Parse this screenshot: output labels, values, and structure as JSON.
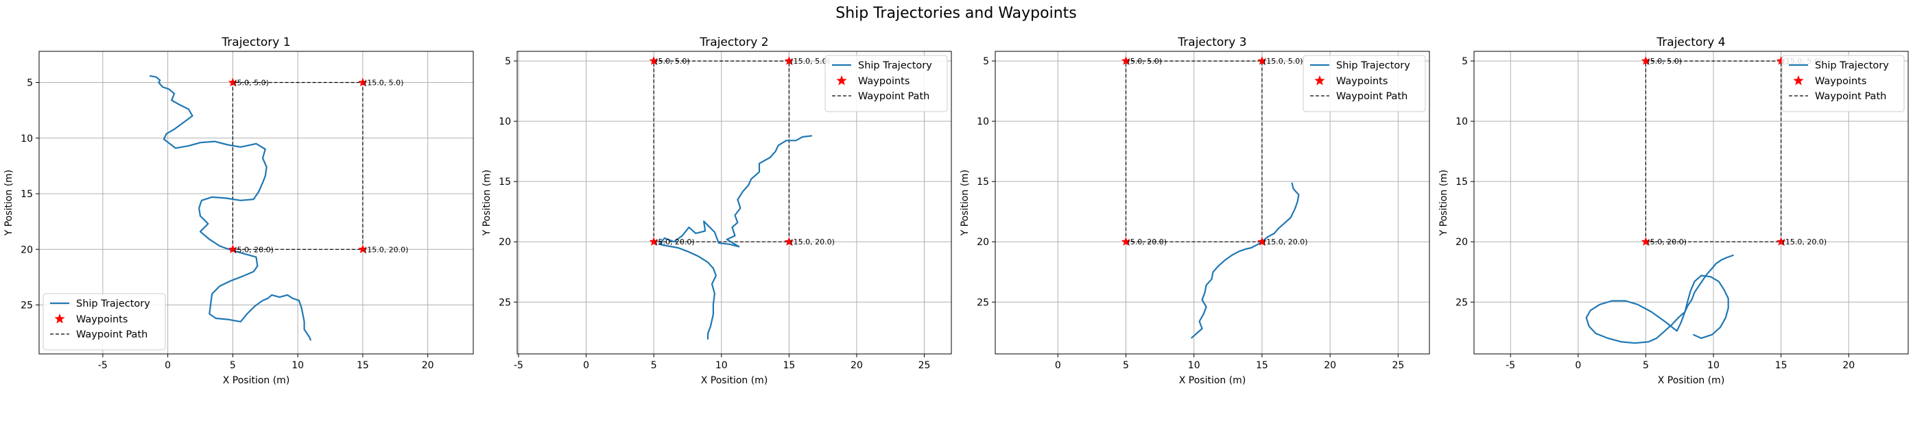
{
  "figure": {
    "title": "Ship Trajectories and Waypoints"
  },
  "colors": {
    "trajectory": "#1f77b4",
    "waypoint": "#ff0000",
    "path": "#000000",
    "grid": "#b0b0b0"
  },
  "chart_data": [
    {
      "type": "line",
      "title": "Trajectory 1",
      "xlabel": "X Position (m)",
      "ylabel": "Y Position (m)",
      "xlim": [
        -9.9,
        23.5
      ],
      "ylim": [
        29.4,
        2.2
      ],
      "y_inverted": true,
      "xticks": [
        -5,
        0,
        5,
        10,
        15,
        20
      ],
      "yticks": [
        5,
        10,
        15,
        20,
        25
      ],
      "grid": true,
      "legend": {
        "loc": "lower-left",
        "entries": [
          "Ship Trajectory",
          "Waypoints",
          "Waypoint Path"
        ]
      },
      "waypoints": [
        {
          "x": 5,
          "y": 5,
          "label": "(5.0, 5.0)"
        },
        {
          "x": 15,
          "y": 5,
          "label": "(15.0, 5.0)"
        },
        {
          "x": 15,
          "y": 20,
          "label": "(15.0, 20.0)"
        },
        {
          "x": 5,
          "y": 20,
          "label": "(5.0, 20.0)"
        }
      ],
      "waypoint_path": [
        [
          5,
          20
        ],
        [
          5,
          5
        ],
        [
          15,
          5
        ],
        [
          15,
          20
        ],
        [
          5,
          20
        ]
      ],
      "series": [
        {
          "name": "Ship Trajectory",
          "points": [
            [
              -1.4,
              4.4
            ],
            [
              -0.9,
              4.5
            ],
            [
              -0.6,
              4.8
            ],
            [
              -0.7,
              5.0
            ],
            [
              -0.4,
              5.4
            ],
            [
              0.1,
              5.6
            ],
            [
              0.5,
              6.0
            ],
            [
              0.3,
              6.6
            ],
            [
              0.9,
              7.0
            ],
            [
              1.6,
              7.4
            ],
            [
              1.9,
              8.0
            ],
            [
              1.2,
              8.6
            ],
            [
              0.5,
              9.2
            ],
            [
              -0.1,
              9.6
            ],
            [
              -0.3,
              10.1
            ],
            [
              0.6,
              10.9
            ],
            [
              1.6,
              10.7
            ],
            [
              2.5,
              10.4
            ],
            [
              3.6,
              10.3
            ],
            [
              4.6,
              10.6
            ],
            [
              5.6,
              10.8
            ],
            [
              6.8,
              10.5
            ],
            [
              7.5,
              11.0
            ],
            [
              7.3,
              11.8
            ],
            [
              7.6,
              12.6
            ],
            [
              7.5,
              13.4
            ],
            [
              7.3,
              14.0
            ],
            [
              7.0,
              14.8
            ],
            [
              6.6,
              15.5
            ],
            [
              5.6,
              15.6
            ],
            [
              4.5,
              15.4
            ],
            [
              3.4,
              15.3
            ],
            [
              2.6,
              15.6
            ],
            [
              2.4,
              16.3
            ],
            [
              2.5,
              17.0
            ],
            [
              3.1,
              17.7
            ],
            [
              2.5,
              18.4
            ],
            [
              3.2,
              19.1
            ],
            [
              4.0,
              19.7
            ],
            [
              4.7,
              20.0
            ],
            [
              5.0,
              20.1
            ],
            [
              5.9,
              20.4
            ],
            [
              6.8,
              20.7
            ],
            [
              6.9,
              21.5
            ],
            [
              6.6,
              22.0
            ],
            [
              5.8,
              22.4
            ],
            [
              4.9,
              22.8
            ],
            [
              4.0,
              23.3
            ],
            [
              3.4,
              24.0
            ],
            [
              3.3,
              24.9
            ],
            [
              3.2,
              25.8
            ],
            [
              3.7,
              26.2
            ],
            [
              4.6,
              26.3
            ],
            [
              5.6,
              26.5
            ],
            [
              6.1,
              25.8
            ],
            [
              6.7,
              25.1
            ],
            [
              7.3,
              24.6
            ],
            [
              7.7,
              24.4
            ],
            [
              8.0,
              24.1
            ],
            [
              8.6,
              24.3
            ],
            [
              9.2,
              24.1
            ],
            [
              9.6,
              24.4
            ],
            [
              10.1,
              24.6
            ],
            [
              10.3,
              25.3
            ],
            [
              10.5,
              26.5
            ],
            [
              10.5,
              27.2
            ],
            [
              10.9,
              27.9
            ],
            [
              11.0,
              28.2
            ]
          ]
        }
      ]
    },
    {
      "type": "line",
      "title": "Trajectory 2",
      "xlabel": "X Position (m)",
      "ylabel": "Y Position (m)",
      "xlim": [
        -5.1,
        27.0
      ],
      "ylim": [
        29.3,
        4.2
      ],
      "y_inverted": true,
      "xticks": [
        -5,
        0,
        5,
        10,
        15,
        20,
        25
      ],
      "yticks": [
        5,
        10,
        15,
        20,
        25
      ],
      "grid": true,
      "legend": {
        "loc": "upper-right",
        "entries": [
          "Ship Trajectory",
          "Waypoints",
          "Waypoint Path"
        ]
      },
      "waypoints": [
        {
          "x": 5,
          "y": 5,
          "label": "(5.0, 5.0)"
        },
        {
          "x": 15,
          "y": 5,
          "label": "(15.0, 5.0)"
        },
        {
          "x": 15,
          "y": 20,
          "label": "(15.0, 20.0)"
        },
        {
          "x": 5,
          "y": 20,
          "label": "(5.0, 20.0)"
        }
      ],
      "waypoint_path": [
        [
          5,
          20
        ],
        [
          5,
          5
        ],
        [
          15,
          5
        ],
        [
          15,
          20
        ],
        [
          5,
          20
        ]
      ],
      "series": [
        {
          "name": "Ship Trajectory",
          "points": [
            [
              16.7,
              11.2
            ],
            [
              16.0,
              11.3
            ],
            [
              15.5,
              11.6
            ],
            [
              14.8,
              11.6
            ],
            [
              14.2,
              12.0
            ],
            [
              14.0,
              12.5
            ],
            [
              13.6,
              13.0
            ],
            [
              12.8,
              13.5
            ],
            [
              12.8,
              14.2
            ],
            [
              12.2,
              14.8
            ],
            [
              12.0,
              15.3
            ],
            [
              11.6,
              15.8
            ],
            [
              11.2,
              16.5
            ],
            [
              11.4,
              17.2
            ],
            [
              11.0,
              17.8
            ],
            [
              11.2,
              18.4
            ],
            [
              10.8,
              18.8
            ],
            [
              11.0,
              19.5
            ],
            [
              10.4,
              19.8
            ],
            [
              11.3,
              20.4
            ],
            [
              10.6,
              20.2
            ],
            [
              9.8,
              20.1
            ],
            [
              9.5,
              19.2
            ],
            [
              8.7,
              18.3
            ],
            [
              8.8,
              19.1
            ],
            [
              8.1,
              19.3
            ],
            [
              7.6,
              18.8
            ],
            [
              7.1,
              19.5
            ],
            [
              6.5,
              20.0
            ],
            [
              5.8,
              19.7
            ],
            [
              5.4,
              20.2
            ],
            [
              5.8,
              20.3
            ],
            [
              6.8,
              20.5
            ],
            [
              7.5,
              20.8
            ],
            [
              8.3,
              21.2
            ],
            [
              9.0,
              21.7
            ],
            [
              9.4,
              22.2
            ],
            [
              9.6,
              22.8
            ],
            [
              9.3,
              23.5
            ],
            [
              9.5,
              24.3
            ],
            [
              9.4,
              25.2
            ],
            [
              9.4,
              26.0
            ],
            [
              9.2,
              27.0
            ],
            [
              9.0,
              27.6
            ],
            [
              9.0,
              28.1
            ]
          ]
        }
      ]
    },
    {
      "type": "line",
      "title": "Trajectory 3",
      "xlabel": "X Position (m)",
      "ylabel": "Y Position (m)",
      "xlim": [
        -4.6,
        27.3
      ],
      "ylim": [
        29.3,
        4.2
      ],
      "y_inverted": true,
      "xticks": [
        0,
        5,
        10,
        15,
        20,
        25
      ],
      "yticks": [
        5,
        10,
        15,
        20,
        25
      ],
      "grid": true,
      "legend": {
        "loc": "upper-right",
        "entries": [
          "Ship Trajectory",
          "Waypoints",
          "Waypoint Path"
        ]
      },
      "waypoints": [
        {
          "x": 5,
          "y": 5,
          "label": "(5.0, 5.0)"
        },
        {
          "x": 15,
          "y": 5,
          "label": "(15.0, 5.0)"
        },
        {
          "x": 15,
          "y": 20,
          "label": "(15.0, 20.0)"
        },
        {
          "x": 5,
          "y": 20,
          "label": "(5.0, 20.0)"
        }
      ],
      "waypoint_path": [
        [
          5,
          20
        ],
        [
          5,
          5
        ],
        [
          15,
          5
        ],
        [
          15,
          20
        ],
        [
          5,
          20
        ]
      ],
      "series": [
        {
          "name": "Ship Trajectory",
          "points": [
            [
              17.2,
              15.1
            ],
            [
              17.3,
              15.6
            ],
            [
              17.7,
              16.1
            ],
            [
              17.6,
              16.7
            ],
            [
              17.4,
              17.3
            ],
            [
              17.1,
              18.0
            ],
            [
              16.7,
              18.4
            ],
            [
              16.2,
              18.9
            ],
            [
              15.9,
              19.3
            ],
            [
              15.4,
              19.6
            ],
            [
              15.0,
              20.0
            ],
            [
              14.7,
              20.2
            ],
            [
              14.2,
              20.5
            ],
            [
              13.8,
              20.6
            ],
            [
              13.3,
              20.8
            ],
            [
              12.8,
              21.1
            ],
            [
              12.3,
              21.5
            ],
            [
              11.8,
              22.0
            ],
            [
              11.4,
              22.5
            ],
            [
              11.3,
              23.1
            ],
            [
              10.9,
              23.6
            ],
            [
              10.8,
              24.2
            ],
            [
              10.6,
              24.8
            ],
            [
              10.9,
              25.4
            ],
            [
              10.7,
              26.0
            ],
            [
              10.4,
              26.6
            ],
            [
              10.6,
              27.2
            ],
            [
              10.1,
              27.7
            ],
            [
              9.8,
              28.0
            ]
          ]
        }
      ]
    },
    {
      "type": "line",
      "title": "Trajectory 4",
      "xlabel": "X Position (m)",
      "ylabel": "Y Position (m)",
      "xlim": [
        -7.7,
        24.4
      ],
      "ylim": [
        29.3,
        4.2
      ],
      "y_inverted": true,
      "xticks": [
        -5,
        0,
        5,
        10,
        15,
        20
      ],
      "yticks": [
        5,
        10,
        15,
        20,
        25
      ],
      "grid": true,
      "legend": {
        "loc": "upper-right",
        "entries": [
          "Ship Trajectory",
          "Waypoints",
          "Waypoint Path"
        ]
      },
      "waypoints": [
        {
          "x": 5,
          "y": 5,
          "label": "(5.0, 5.0)"
        },
        {
          "x": 15,
          "y": 5,
          "label": "(15.0, 5.0)"
        },
        {
          "x": 15,
          "y": 20,
          "label": "(15.0, 20.0)"
        },
        {
          "x": 5,
          "y": 20,
          "label": "(5.0, 20.0)"
        }
      ],
      "waypoint_path": [
        [
          5,
          20
        ],
        [
          5,
          5
        ],
        [
          15,
          5
        ],
        [
          15,
          20
        ],
        [
          5,
          20
        ]
      ],
      "series": [
        {
          "name": "Ship Trajectory",
          "points": [
            [
              11.5,
              21.1
            ],
            [
              11.0,
              21.3
            ],
            [
              10.6,
              21.5
            ],
            [
              10.2,
              21.8
            ],
            [
              9.9,
              22.2
            ],
            [
              9.5,
              22.7
            ],
            [
              9.2,
              23.2
            ],
            [
              8.9,
              23.7
            ],
            [
              8.6,
              24.2
            ],
            [
              8.4,
              24.8
            ],
            [
              8.1,
              25.3
            ],
            [
              7.9,
              25.8
            ],
            [
              7.4,
              26.3
            ],
            [
              6.9,
              26.9
            ],
            [
              6.3,
              27.5
            ],
            [
              5.8,
              28.0
            ],
            [
              5.2,
              28.3
            ],
            [
              4.2,
              28.4
            ],
            [
              3.2,
              28.3
            ],
            [
              2.2,
              28.0
            ],
            [
              1.3,
              27.6
            ],
            [
              0.8,
              27.0
            ],
            [
              0.6,
              26.3
            ],
            [
              0.9,
              25.7
            ],
            [
              1.6,
              25.2
            ],
            [
              2.5,
              24.9
            ],
            [
              3.5,
              24.9
            ],
            [
              4.4,
              25.2
            ],
            [
              5.4,
              25.8
            ],
            [
              6.4,
              26.6
            ],
            [
              7.3,
              27.4
            ],
            [
              7.6,
              26.7
            ],
            [
              7.9,
              25.8
            ],
            [
              8.1,
              24.9
            ],
            [
              8.3,
              24.1
            ],
            [
              8.6,
              23.3
            ],
            [
              9.1,
              22.8
            ],
            [
              9.8,
              22.9
            ],
            [
              10.4,
              23.3
            ],
            [
              10.8,
              24.0
            ],
            [
              11.1,
              24.7
            ],
            [
              11.1,
              25.5
            ],
            [
              10.9,
              26.3
            ],
            [
              10.5,
              27.1
            ],
            [
              9.9,
              27.7
            ],
            [
              9.1,
              28.0
            ],
            [
              8.5,
              27.7
            ]
          ]
        }
      ]
    }
  ]
}
